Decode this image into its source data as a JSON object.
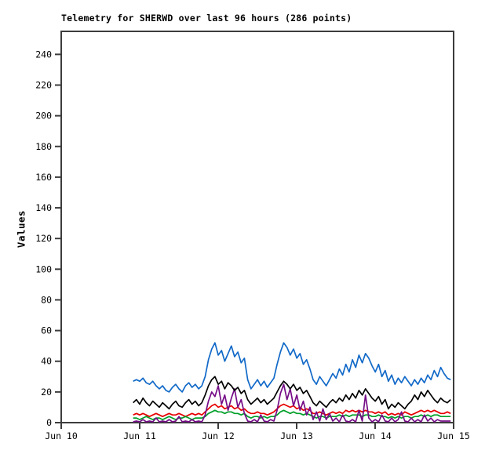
{
  "chart_data": {
    "type": "line",
    "title": "Telemetry for SHERWD over last 96 hours (286 points)",
    "station": "SHERWD",
    "points": 286,
    "window_hours": 96,
    "xlabel": "",
    "ylabel": "Values",
    "ylim": [
      0,
      255
    ],
    "yticks": [
      0,
      20,
      40,
      60,
      80,
      100,
      120,
      140,
      160,
      180,
      200,
      220,
      240
    ],
    "x_tick_labels": [
      "Jun 10",
      "Jun 11",
      "Jun 12",
      "Jun 13",
      "Jun 14",
      "Jun 15"
    ],
    "grid": false,
    "legend": "none",
    "x_start_day": 0.9167,
    "x_step_days": 0.0417,
    "sample_step_hours": 1,
    "series": [
      {
        "name": "series-red",
        "color": "#E60000",
        "values": [
          5,
          6,
          5,
          6,
          5,
          4,
          5,
          6,
          5,
          4,
          5,
          6,
          5,
          5,
          6,
          5,
          4,
          5,
          6,
          5,
          6,
          5,
          7,
          9,
          11,
          12,
          10,
          11,
          9,
          10,
          11,
          9,
          10,
          8,
          9,
          7,
          6,
          6,
          7,
          6,
          6,
          5,
          6,
          7,
          9,
          11,
          12,
          11,
          10,
          11,
          9,
          10,
          8,
          9,
          8,
          6,
          6,
          7,
          6,
          5,
          6,
          7,
          6,
          7,
          6,
          8,
          7,
          8,
          7,
          8,
          7,
          8,
          7,
          7,
          6,
          7,
          6,
          7,
          5,
          6,
          5,
          6,
          5,
          7,
          6,
          5,
          6,
          7,
          8,
          7,
          8,
          7,
          8,
          7,
          6,
          6,
          7,
          6
        ]
      },
      {
        "name": "series-green",
        "color": "#00A02A",
        "values": [
          3,
          3,
          2,
          3,
          4,
          3,
          2,
          3,
          3,
          2,
          3,
          4,
          3,
          2,
          3,
          3,
          4,
          3,
          2,
          3,
          3,
          3,
          4,
          6,
          7,
          8,
          7,
          7,
          6,
          7,
          7,
          6,
          6,
          5,
          6,
          4,
          3,
          4,
          4,
          3,
          4,
          3,
          4,
          4,
          5,
          7,
          8,
          7,
          6,
          7,
          6,
          6,
          5,
          6,
          5,
          4,
          3,
          4,
          4,
          3,
          4,
          4,
          4,
          5,
          4,
          5,
          4,
          5,
          5,
          5,
          4,
          5,
          5,
          4,
          4,
          5,
          4,
          4,
          3,
          4,
          3,
          4,
          3,
          4,
          4,
          3,
          4,
          4,
          5,
          4,
          5,
          4,
          5,
          5,
          4,
          4,
          4,
          4
        ]
      },
      {
        "name": "series-purple",
        "color": "#750D87",
        "values": [
          0,
          1,
          0,
          2,
          0,
          1,
          0,
          3,
          0,
          1,
          0,
          2,
          0,
          1,
          4,
          0,
          1,
          0,
          2,
          0,
          1,
          0,
          5,
          14,
          20,
          17,
          24,
          12,
          18,
          8,
          16,
          22,
          10,
          15,
          6,
          1,
          0,
          2,
          0,
          5,
          1,
          0,
          2,
          1,
          8,
          19,
          25,
          15,
          22,
          11,
          18,
          8,
          14,
          5,
          10,
          2,
          7,
          1,
          9,
          2,
          6,
          1,
          3,
          0,
          5,
          1,
          0,
          2,
          0,
          8,
          1,
          18,
          3,
          0,
          2,
          0,
          5,
          1,
          0,
          3,
          0,
          2,
          7,
          1,
          0,
          3,
          0,
          2,
          0,
          5,
          1,
          3,
          0,
          2,
          1,
          1,
          1,
          1
        ]
      },
      {
        "name": "series-black",
        "color": "#000000",
        "values": [
          13,
          15,
          12,
          16,
          13,
          11,
          14,
          12,
          10,
          13,
          11,
          9,
          12,
          14,
          11,
          10,
          13,
          15,
          12,
          14,
          11,
          13,
          18,
          24,
          28,
          30,
          25,
          27,
          22,
          26,
          24,
          21,
          23,
          19,
          21,
          15,
          12,
          14,
          16,
          13,
          15,
          12,
          14,
          16,
          20,
          24,
          27,
          25,
          22,
          25,
          21,
          23,
          19,
          21,
          17,
          13,
          11,
          14,
          12,
          10,
          13,
          15,
          13,
          16,
          14,
          18,
          15,
          19,
          16,
          21,
          18,
          22,
          19,
          16,
          14,
          17,
          12,
          15,
          9,
          12,
          10,
          13,
          11,
          9,
          12,
          14,
          18,
          15,
          20,
          17,
          21,
          18,
          15,
          13,
          16,
          14,
          13,
          15
        ]
      },
      {
        "name": "series-blue",
        "color": "#1169C8",
        "values": [
          27,
          28,
          27,
          29,
          26,
          25,
          27,
          24,
          22,
          24,
          21,
          20,
          23,
          25,
          22,
          20,
          24,
          26,
          23,
          25,
          22,
          24,
          30,
          41,
          48,
          52,
          44,
          47,
          40,
          45,
          50,
          43,
          46,
          39,
          42,
          28,
          22,
          25,
          28,
          24,
          27,
          23,
          26,
          29,
          38,
          46,
          52,
          49,
          44,
          48,
          42,
          45,
          38,
          41,
          35,
          28,
          25,
          30,
          27,
          24,
          28,
          32,
          29,
          35,
          31,
          38,
          33,
          41,
          36,
          44,
          39,
          45,
          42,
          37,
          33,
          38,
          30,
          34,
          27,
          31,
          25,
          29,
          26,
          30,
          27,
          24,
          28,
          25,
          29,
          26,
          31,
          28,
          34,
          30,
          36,
          32,
          29,
          28
        ]
      }
    ],
    "colors": {
      "frame": "#3C3C3C",
      "text": "#000000",
      "background": "#FFFFFF"
    }
  }
}
